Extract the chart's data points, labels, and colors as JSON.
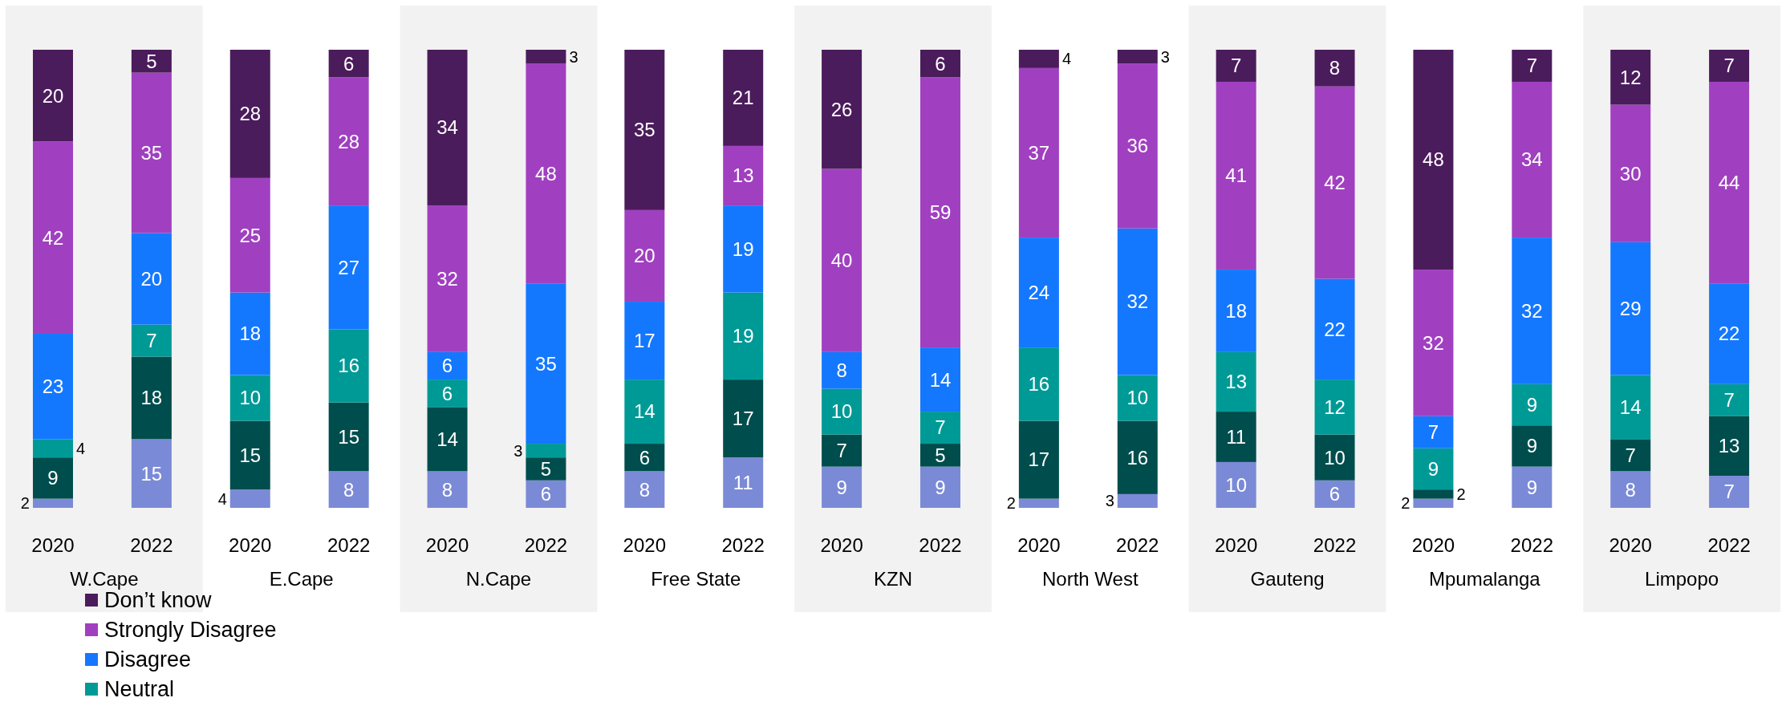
{
  "chart_data": {
    "type": "bar",
    "stacked": true,
    "data_labels": true,
    "legend": "bottom left",
    "tick_labels": "x",
    "ylim": [
      0,
      100
    ],
    "categories": [
      "2020",
      "2022",
      "2020",
      "2022",
      "2020",
      "2022",
      "2020",
      "2022",
      "2020",
      "2022",
      "2020",
      "2022",
      "2020",
      "2022",
      "2020",
      "2022",
      "2020",
      "2022"
    ],
    "annotations": [
      "W.Cape",
      "E.Cape",
      "N.Cape",
      "Free State",
      "KZN",
      "North West",
      "Gauteng",
      "Mpumalanga",
      "Limpopo"
    ],
    "series": [
      {
        "color": "#7b8ad6",
        "values": [
          2,
          15,
          4,
          8,
          8,
          6,
          8,
          11,
          9,
          9,
          2,
          3,
          10,
          6,
          2,
          9,
          8,
          7
        ]
      },
      {
        "color": "#004d4d",
        "values": [
          9,
          18,
          15,
          15,
          14,
          5,
          6,
          17,
          7,
          5,
          17,
          16,
          11,
          10,
          2,
          9,
          7,
          13
        ]
      },
      {
        "name": "Neutral",
        "color": "#009a96",
        "values": [
          4,
          7,
          10,
          16,
          6,
          3,
          14,
          19,
          10,
          7,
          16,
          10,
          13,
          12,
          9,
          9,
          14,
          7
        ]
      },
      {
        "name": "Disagree",
        "color": "#1478ff",
        "values": [
          23,
          20,
          18,
          27,
          6,
          35,
          17,
          19,
          8,
          14,
          24,
          32,
          18,
          22,
          7,
          32,
          29,
          22
        ]
      },
      {
        "name": "Strongly Disagree",
        "color": "#a040c0",
        "values": [
          42,
          35,
          25,
          28,
          32,
          48,
          20,
          13,
          40,
          59,
          37,
          36,
          41,
          42,
          32,
          34,
          30,
          44
        ]
      },
      {
        "name": "Don’t know",
        "color": "#4b1c5c",
        "values": [
          20,
          5,
          28,
          6,
          34,
          3,
          35,
          21,
          26,
          6,
          4,
          3,
          7,
          8,
          48,
          7,
          12,
          7
        ]
      }
    ]
  }
}
